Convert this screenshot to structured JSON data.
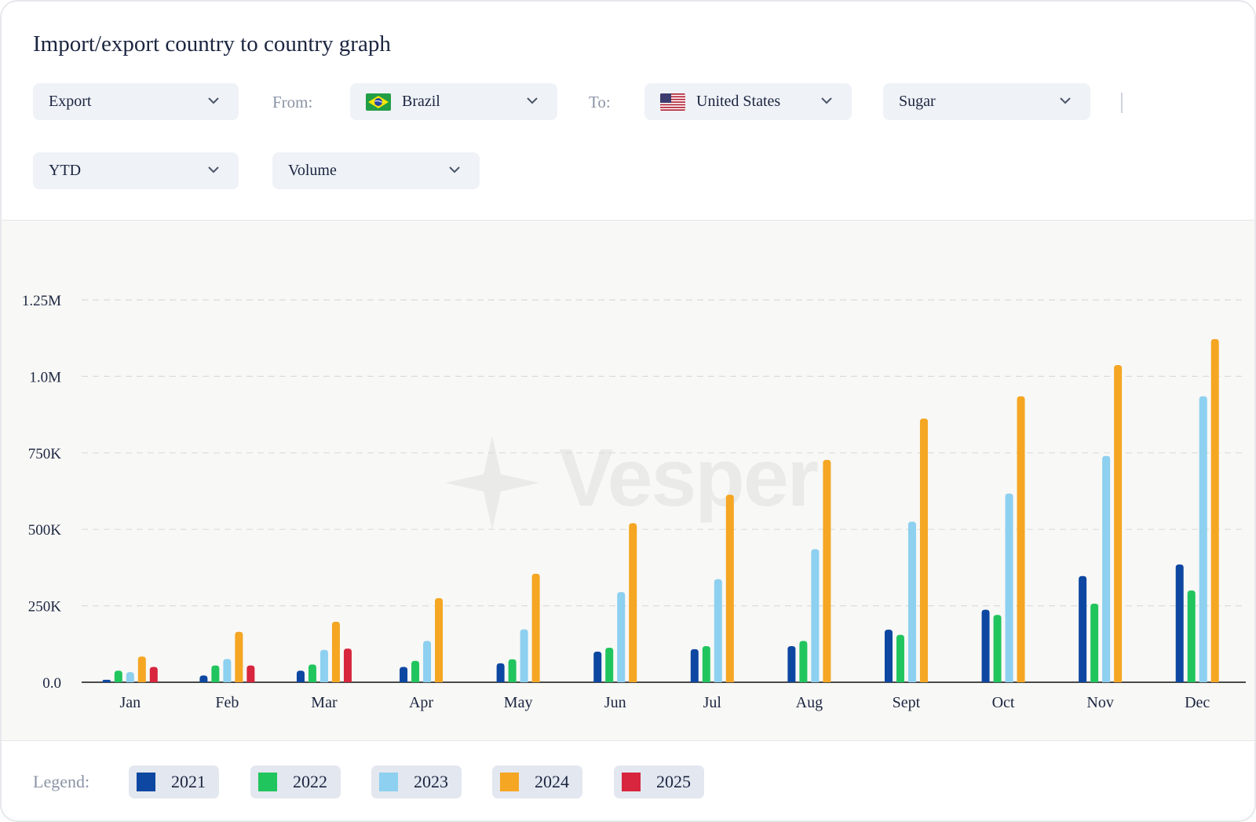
{
  "title": "Import/export country to country graph",
  "filters": {
    "flow": "Export",
    "from_label": "From:",
    "from_country": "Brazil",
    "to_label": "To:",
    "to_country": "United States",
    "commodity": "Sugar",
    "period": "YTD",
    "measure": "Volume"
  },
  "icons": {
    "dropdown": "chevron-down-icon",
    "from_flag": "brazil-flag-icon",
    "to_flag": "us-flag-icon",
    "watermark": "vesper-logo"
  },
  "watermark": "Vesper",
  "legend_label": "Legend:",
  "chart_data": {
    "type": "bar",
    "categories": [
      "Jan",
      "Feb",
      "Mar",
      "Apr",
      "May",
      "Jun",
      "Jul",
      "Aug",
      "Sept",
      "Oct",
      "Nov",
      "Dec"
    ],
    "y_ticks": [
      "0.0",
      "250K",
      "500K",
      "750K",
      "1.0M",
      "1.25M"
    ],
    "ylim": [
      0,
      1250000
    ],
    "grid": true,
    "legend_position": "bottom",
    "series": [
      {
        "name": "2021",
        "color": "#0d47a1",
        "values": [
          8000,
          22000,
          38000,
          50000,
          62000,
          100000,
          108000,
          118000,
          172000,
          237000,
          347000,
          385000
        ]
      },
      {
        "name": "2022",
        "color": "#21c55d",
        "values": [
          38000,
          55000,
          58000,
          70000,
          75000,
          113000,
          118000,
          135000,
          155000,
          220000,
          257000,
          300000
        ]
      },
      {
        "name": "2023",
        "color": "#8dd0f0",
        "values": [
          33000,
          76000,
          106000,
          135000,
          173000,
          295000,
          337000,
          435000,
          525000,
          617000,
          740000,
          935000
        ]
      },
      {
        "name": "2024",
        "color": "#f5a623",
        "values": [
          84000,
          165000,
          198000,
          275000,
          355000,
          520000,
          613000,
          727000,
          862000,
          935000,
          1037000,
          1122000
        ]
      },
      {
        "name": "2025",
        "color": "#d7263d",
        "values": [
          50000,
          55000,
          110000,
          null,
          null,
          null,
          null,
          null,
          null,
          null,
          null,
          null
        ]
      }
    ]
  }
}
